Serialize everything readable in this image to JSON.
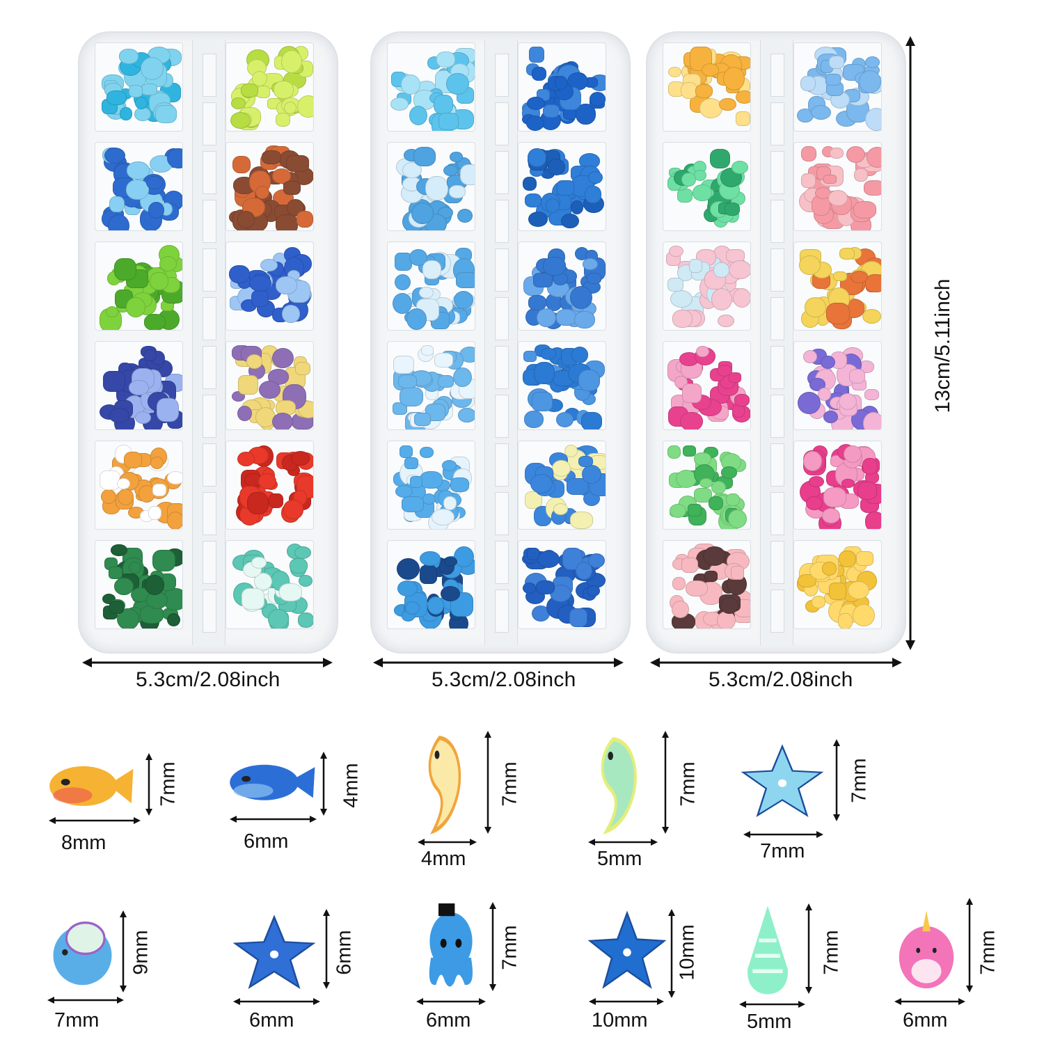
{
  "trays": [
    {
      "id": "tray-1",
      "width_label": "5.3cm/2.08inch",
      "cells": [
        [
          "#7fd3ee",
          "#2fb4e0"
        ],
        [
          "#d7f06a",
          "#b7dd43"
        ],
        [
          "#2e6bcf",
          "#88d0f3"
        ],
        [
          "#8a4b33",
          "#d56a38"
        ],
        [
          "#7ed33d",
          "#4caa2b"
        ],
        [
          "#2f5fca",
          "#9dc6f5"
        ],
        [
          "#3548a8",
          "#9bb2f0"
        ],
        [
          "#f0d77a",
          "#8e6fb5"
        ],
        [
          "#f2a13c",
          "#ffffff"
        ],
        [
          "#e8392a",
          "#c9281e"
        ],
        [
          "#2f8b4f",
          "#1d5f36"
        ],
        [
          "#5bc7b4",
          "#e6f8f3"
        ]
      ]
    },
    {
      "id": "tray-2",
      "width_label": "5.3cm/2.08inch",
      "cells": [
        [
          "#5cc4ec",
          "#a8e2f6"
        ],
        [
          "#1d63c7",
          "#3e86dc"
        ],
        [
          "#4ea3e0",
          "#d5ecfa"
        ],
        [
          "#2f7ed8",
          "#1c5fb9"
        ],
        [
          "#55a8e6",
          "#dbeffb"
        ],
        [
          "#3578d1",
          "#6aa9ea"
        ],
        [
          "#6cb7ec",
          "#e9f5fd"
        ],
        [
          "#2b7ad4",
          "#4d96e2"
        ],
        [
          "#55acea",
          "#e5f3fc"
        ],
        [
          "#3b86dc",
          "#f3f0b2"
        ],
        [
          "#3d9be2",
          "#1a4a8c"
        ],
        [
          "#225fc0",
          "#3f80d8"
        ]
      ]
    },
    {
      "id": "tray-3",
      "width_label": "5.3cm/2.08inch",
      "cells": [
        [
          "#f6b23d",
          "#ffe08a"
        ],
        [
          "#7ab8ee",
          "#bcdcf7"
        ],
        [
          "#6ee0a4",
          "#2fa86d"
        ],
        [
          "#f59aa4",
          "#f7c0c6"
        ],
        [
          "#f7c4d2",
          "#cfe9f5"
        ],
        [
          "#f4d45a",
          "#e8743a"
        ],
        [
          "#e8428f",
          "#f4a6c8"
        ],
        [
          "#f3b4d6",
          "#7a6ad6"
        ],
        [
          "#7fdc84",
          "#3fb25a"
        ],
        [
          "#e83e8c",
          "#f59ac3"
        ],
        [
          "#f7b9bf",
          "#5a3a3a"
        ],
        [
          "#ffd96a",
          "#f2c238"
        ]
      ]
    }
  ],
  "height_label": "13cm/5.11inch",
  "samples_row1": [
    {
      "name": "fish-orange",
      "w": "8mm",
      "h": "7mm",
      "color": "#f5b233",
      "accent": "#f0614a"
    },
    {
      "name": "fish-blue",
      "w": "6mm",
      "h": "4mm",
      "color": "#2b6fd6",
      "accent": "#8ec2f2"
    },
    {
      "name": "seahorse-yellow",
      "w": "4mm",
      "h": "7mm",
      "color": "#fbe9a8",
      "accent": "#f0a53a"
    },
    {
      "name": "seahorse-green",
      "w": "5mm",
      "h": "7mm",
      "color": "#a8e8c0",
      "accent": "#e4ee7a"
    },
    {
      "name": "starfish-lightblue",
      "w": "7mm",
      "h": "7mm",
      "color": "#8ed6f0",
      "accent": "#ffffff"
    }
  ],
  "samples_row2": [
    {
      "name": "puffer-fish",
      "w": "7mm",
      "h": "9mm",
      "color": "#5aaee8",
      "accent": "#9a62c8"
    },
    {
      "name": "star-blue",
      "w": "6mm",
      "h": "6mm",
      "color": "#2f6fd6",
      "accent": "#ffffff"
    },
    {
      "name": "octopus",
      "w": "6mm",
      "h": "7mm",
      "color": "#3c9be4",
      "accent": "#111111"
    },
    {
      "name": "starfish-blue",
      "w": "10mm",
      "h": "10mm",
      "color": "#1f6ed0",
      "accent": "#ffffff"
    },
    {
      "name": "seashell",
      "w": "5mm",
      "h": "7mm",
      "color": "#8ef0c8",
      "accent": "#e4fff4"
    },
    {
      "name": "narwhal",
      "w": "6mm",
      "h": "7mm",
      "color": "#f374b8",
      "accent": "#f7c84a"
    }
  ]
}
